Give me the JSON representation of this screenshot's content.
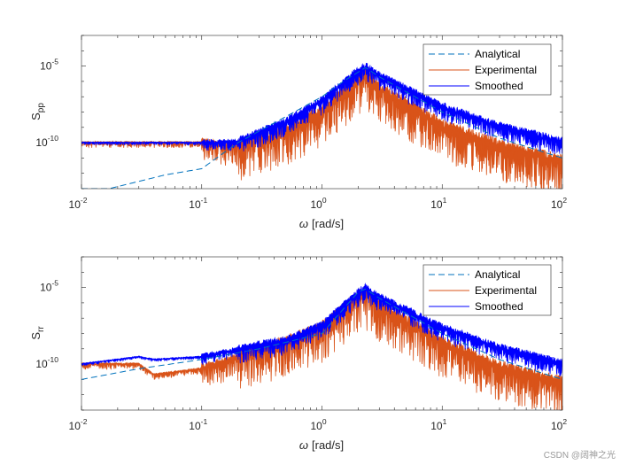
{
  "chart_data": [
    {
      "type": "line",
      "panel": "top",
      "ylabel": "S",
      "ylabel_subscript": "pp",
      "xlabel_symbol": "ω",
      "xlabel_unit": "[rad/s]",
      "xscale": "log",
      "yscale": "log",
      "xlim": [
        0.01,
        100
      ],
      "ylim": [
        1e-13,
        0.001
      ],
      "x_ticks": [
        {
          "base": "10",
          "exp": "-2"
        },
        {
          "base": "10",
          "exp": "-1"
        },
        {
          "base": "10",
          "exp": "0"
        },
        {
          "base": "10",
          "exp": "1"
        },
        {
          "base": "10",
          "exp": "2"
        }
      ],
      "y_ticks": [
        {
          "value": 1e-10,
          "base": "10",
          "exp": "-10"
        },
        {
          "value": 1e-05,
          "base": "10",
          "exp": "-5"
        }
      ],
      "legend": {
        "placement": "top-right",
        "entries": [
          "Analytical",
          "Experimental",
          "Smoothed"
        ]
      },
      "series": [
        {
          "name": "Analytical",
          "style": "dashed",
          "color": "#0072BD",
          "points": [
            [
              0.017,
              1e-13
            ],
            [
              0.05,
              8e-13
            ],
            [
              0.1,
              2e-12
            ],
            [
              0.2,
              1e-10
            ],
            [
              0.5,
              5e-09
            ],
            [
              1,
              1e-07
            ],
            [
              1.5,
              1e-06
            ],
            [
              2,
              4e-06
            ],
            [
              2.3,
              8e-06
            ],
            [
              3,
              2e-06
            ],
            [
              10,
              1e-08
            ],
            [
              30,
              2e-10
            ],
            [
              100,
              1e-11
            ]
          ]
        },
        {
          "name": "Experimental",
          "style": "solid",
          "color": "#D95319",
          "points": [
            [
              0.01,
              1e-10
            ],
            [
              0.1,
              1e-10
            ],
            [
              0.2,
              5e-11
            ],
            [
              0.5,
              5e-10
            ],
            [
              1,
              1e-08
            ],
            [
              2,
              1e-06
            ],
            [
              2.3,
              3e-06
            ],
            [
              3,
              3e-07
            ],
            [
              10,
              1e-09
            ],
            [
              30,
              5e-11
            ],
            [
              100,
              5e-12
            ]
          ]
        },
        {
          "name": "Smoothed",
          "style": "solid",
          "color": "#0000FF",
          "points": [
            [
              0.01,
              1e-10
            ],
            [
              0.1,
              1e-10
            ],
            [
              0.2,
              1e-10
            ],
            [
              0.5,
              2e-09
            ],
            [
              1,
              5e-08
            ],
            [
              2,
              4e-06
            ],
            [
              2.3,
              8e-06
            ],
            [
              3,
              2e-06
            ],
            [
              10,
              2e-08
            ],
            [
              30,
              1e-09
            ],
            [
              100,
              1e-10
            ]
          ]
        }
      ]
    },
    {
      "type": "line",
      "panel": "bottom",
      "ylabel": "S",
      "ylabel_subscript": "rr",
      "xlabel_symbol": "ω",
      "xlabel_unit": "[rad/s]",
      "xscale": "log",
      "yscale": "log",
      "xlim": [
        0.01,
        100
      ],
      "ylim": [
        1e-13,
        0.001
      ],
      "x_ticks": [
        {
          "base": "10",
          "exp": "-2"
        },
        {
          "base": "10",
          "exp": "-1"
        },
        {
          "base": "10",
          "exp": "0"
        },
        {
          "base": "10",
          "exp": "1"
        },
        {
          "base": "10",
          "exp": "2"
        }
      ],
      "y_ticks": [
        {
          "value": 1e-10,
          "base": "10",
          "exp": "-10"
        },
        {
          "value": 1e-05,
          "base": "10",
          "exp": "-5"
        }
      ],
      "legend": {
        "placement": "top-right",
        "entries": [
          "Analytical",
          "Experimental",
          "Smoothed"
        ]
      },
      "series": [
        {
          "name": "Analytical",
          "style": "dashed",
          "color": "#0072BD",
          "points": [
            [
              0.01,
              1e-11
            ],
            [
              0.03,
              5e-11
            ],
            [
              0.1,
              2e-10
            ],
            [
              0.3,
              1e-09
            ],
            [
              1,
              1e-08
            ],
            [
              2,
              5e-06
            ],
            [
              2.3,
              8e-06
            ],
            [
              3,
              2e-06
            ],
            [
              10,
              1e-08
            ],
            [
              30,
              2e-10
            ],
            [
              100,
              1e-11
            ]
          ]
        },
        {
          "name": "Experimental",
          "style": "solid",
          "color": "#D95319",
          "points": [
            [
              0.01,
              1e-10
            ],
            [
              0.03,
              1e-10
            ],
            [
              0.04,
              2e-11
            ],
            [
              0.1,
              5e-11
            ],
            [
              0.5,
              2e-09
            ],
            [
              1,
              2e-08
            ],
            [
              2,
              2e-06
            ],
            [
              2.3,
              3e-06
            ],
            [
              3,
              5e-07
            ],
            [
              10,
              2e-09
            ],
            [
              30,
              5e-11
            ],
            [
              100,
              5e-12
            ]
          ]
        },
        {
          "name": "Smoothed",
          "style": "solid",
          "color": "#0000FF",
          "points": [
            [
              0.01,
              1e-10
            ],
            [
              0.03,
              3e-10
            ],
            [
              0.04,
              2e-10
            ],
            [
              0.1,
              3e-10
            ],
            [
              0.5,
              3e-09
            ],
            [
              1,
              3e-08
            ],
            [
              2,
              4e-06
            ],
            [
              2.3,
              8e-06
            ],
            [
              3,
              2e-06
            ],
            [
              10,
              2e-08
            ],
            [
              30,
              1e-09
            ],
            [
              100,
              1e-10
            ]
          ]
        }
      ]
    }
  ],
  "watermark": "CSDN @阔神之光"
}
